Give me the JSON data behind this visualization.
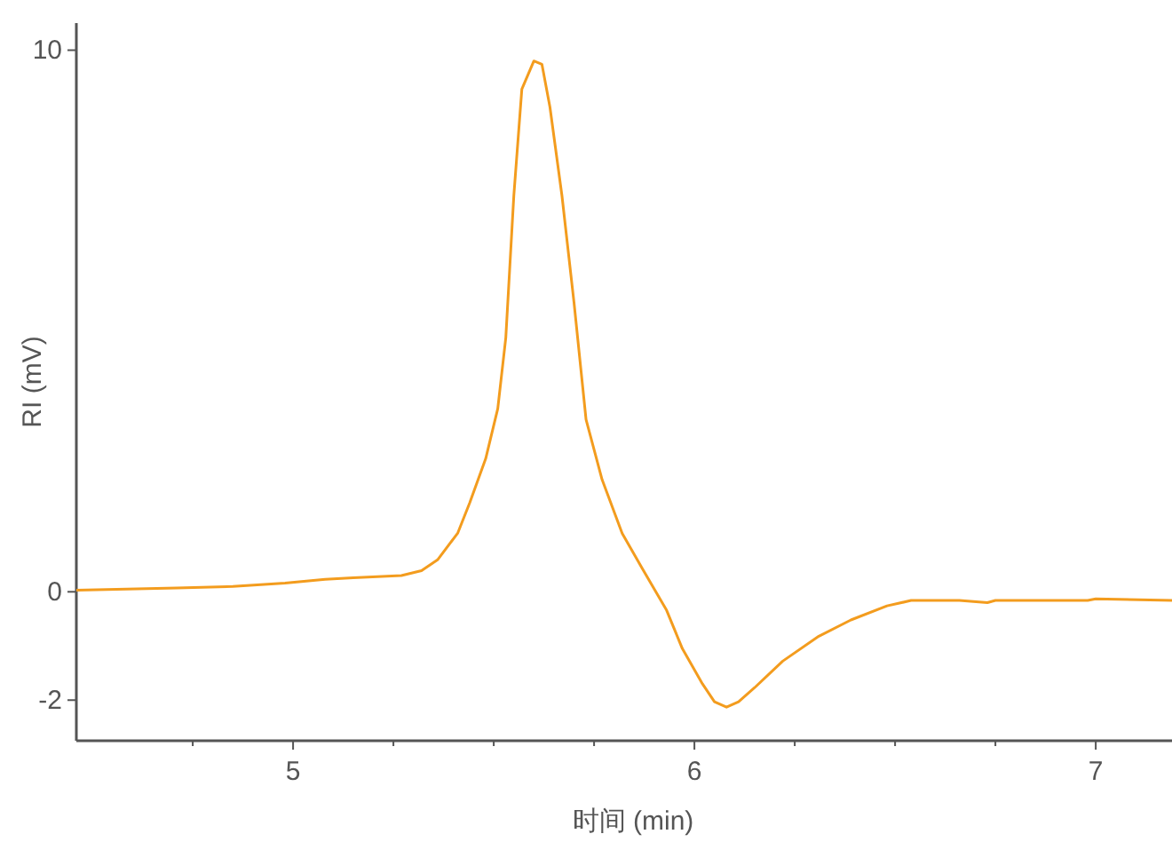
{
  "chart_data": {
    "type": "line",
    "xlabel": "时间 (min)",
    "ylabel": "RI (mV)",
    "xlim": [
      4.46,
      7.19
    ],
    "ylim": [
      -2.75,
      10.5
    ],
    "xticks": [
      {
        "value": 4.75,
        "label": null
      },
      5,
      {
        "value": 5.25,
        "label": null
      },
      {
        "value": 5.5,
        "label": null
      },
      {
        "value": 5.75,
        "label": null
      },
      6,
      {
        "value": 6.25,
        "label": null
      },
      {
        "value": 6.5,
        "label": null
      },
      {
        "value": 6.75,
        "label": null
      },
      7
    ],
    "yticks": [
      -2,
      0,
      10
    ],
    "grid": false,
    "marker": "none",
    "line_style": "solid",
    "series": [
      {
        "color": "#f39c1e",
        "x": [
          4.46,
          4.71,
          4.85,
          4.98,
          5.08,
          5.15,
          5.27,
          5.32,
          5.36,
          5.41,
          5.44,
          5.48,
          5.51,
          5.53,
          5.55,
          5.57,
          5.6,
          5.62,
          5.64,
          5.67,
          5.7,
          5.73,
          5.77,
          5.82,
          5.87,
          5.93,
          5.97,
          6.02,
          6.05,
          6.08,
          6.11,
          6.15,
          6.22,
          6.31,
          6.39,
          6.48,
          6.54,
          6.66,
          6.73,
          6.75,
          6.98,
          7.0,
          7.19
        ],
        "values": [
          0.03,
          0.07,
          0.1,
          0.16,
          0.23,
          0.26,
          0.3,
          0.39,
          0.59,
          1.08,
          1.64,
          2.46,
          3.38,
          4.69,
          7.31,
          9.28,
          9.8,
          9.74,
          8.95,
          7.31,
          5.34,
          3.18,
          2.07,
          1.08,
          0.43,
          -0.33,
          -1.05,
          -1.7,
          -2.03,
          -2.13,
          -2.03,
          -1.77,
          -1.28,
          -0.82,
          -0.52,
          -0.26,
          -0.16,
          -0.16,
          -0.2,
          -0.16,
          -0.16,
          -0.13,
          -0.16
        ]
      }
    ]
  }
}
